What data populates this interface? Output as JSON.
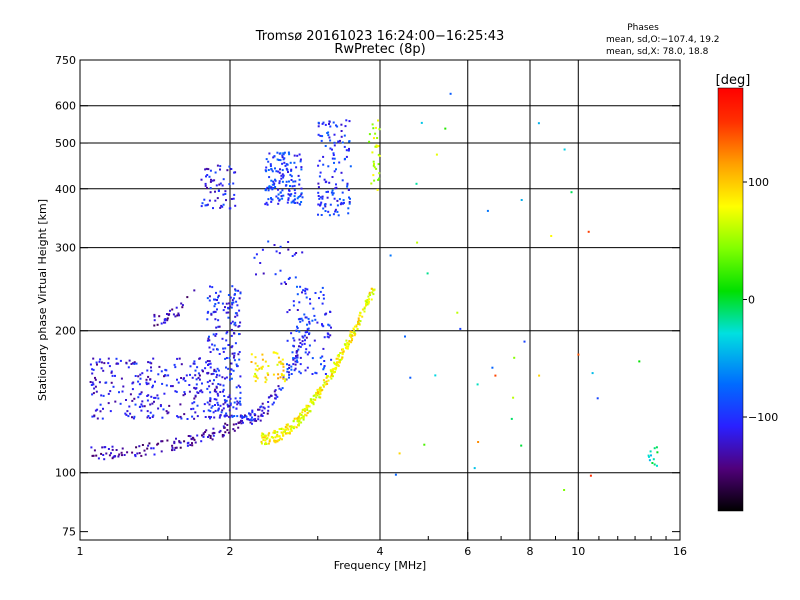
{
  "chart_data": {
    "type": "scatter",
    "title_line1": "Tromsø 20161023 16:24:00−16:25:43",
    "title_line2": "RwPretec (8p)",
    "phases": {
      "heading": "Phases",
      "line1": "mean, sd,O:−107.4, 19.2",
      "line2": "mean, sd,X:  78.0, 18.8"
    },
    "xlabel": "Frequency [MHz]",
    "ylabel": "Stationary phase Virtual Height [km]",
    "xscale": "log",
    "yscale": "log",
    "xlim": [
      1,
      16
    ],
    "ylim": [
      72,
      750
    ],
    "x_ticks": [
      {
        "value": 1,
        "label": "1"
      },
      {
        "value": 2,
        "label": "2"
      },
      {
        "value": 4,
        "label": "4"
      },
      {
        "value": 6,
        "label": "6"
      },
      {
        "value": 8,
        "label": "8"
      },
      {
        "value": 10,
        "label": "10"
      },
      {
        "value": 16,
        "label": "16"
      }
    ],
    "x_minor_ticks": [
      1.5,
      3,
      5,
      7,
      9,
      11,
      12,
      13,
      14,
      15
    ],
    "y_ticks": [
      {
        "value": 75,
        "label": "75"
      },
      {
        "value": 100,
        "label": "100"
      },
      {
        "value": 200,
        "label": "200"
      },
      {
        "value": 300,
        "label": "300"
      },
      {
        "value": 400,
        "label": "400"
      },
      {
        "value": 500,
        "label": "500"
      },
      {
        "value": 600,
        "label": "600"
      },
      {
        "value": 750,
        "label": "750"
      }
    ],
    "grid": true,
    "x_grid": [
      2,
      4,
      6,
      8,
      10
    ],
    "y_grid": [
      100,
      200,
      300,
      400,
      500,
      600
    ],
    "colorbar": {
      "label": "[deg]",
      "range": [
        -180,
        180
      ],
      "ticks": [
        {
          "value": 100,
          "label": "100"
        },
        {
          "value": 0,
          "label": "0"
        },
        {
          "value": -100,
          "label": "−100"
        }
      ]
    },
    "series": [
      {
        "region": "O-mode low trace",
        "x_range": [
          1.05,
          2.4
        ],
        "h_range": [
          110,
          135
        ],
        "shape": "curve",
        "phase_mean": -130,
        "count": 140
      },
      {
        "region": "O-mode scattered F-layer",
        "x_range": [
          1.05,
          1.9
        ],
        "h_range": [
          130,
          175
        ],
        "shape": "cloud",
        "phase_mean": -115,
        "count": 260
      },
      {
        "region": "O-mode spread near 2 MHz",
        "x_range": [
          1.8,
          2.1
        ],
        "h_range": [
          130,
          250
        ],
        "shape": "cloud",
        "phase_mean": -105,
        "count": 220
      },
      {
        "region": "O-mode trace 2.1-2.9 MHz",
        "x_range": [
          2.1,
          2.9
        ],
        "h_range": [
          130,
          205
        ],
        "shape": "curve",
        "phase_mean": -110,
        "count": 80
      },
      {
        "region": "O-mode spread 2.6-3.2 MHz",
        "x_range": [
          2.6,
          3.2
        ],
        "h_range": [
          160,
          250
        ],
        "shape": "cloud",
        "phase_mean": -100,
        "count": 120
      },
      {
        "region": "X-mode trace",
        "x_range": [
          2.3,
          3.9
        ],
        "h_range": [
          118,
          245
        ],
        "shape": "curve",
        "phase_mean": 80,
        "count": 320
      },
      {
        "region": "X-mode yellow cluster",
        "x_range": [
          2.2,
          2.6
        ],
        "h_range": [
          155,
          180
        ],
        "shape": "cloud",
        "phase_mean": 90,
        "count": 50
      },
      {
        "region": "O-mode tilted band 1.4-1.7 MHz",
        "x_range": [
          1.4,
          1.7
        ],
        "h_range": [
          210,
          240
        ],
        "shape": "curve",
        "phase_mean": -130,
        "count": 30
      },
      {
        "region": "O-mode high cluster 1.8-2.0",
        "x_range": [
          1.75,
          2.05
        ],
        "h_range": [
          360,
          450
        ],
        "shape": "cloud",
        "phase_mean": -110,
        "count": 60
      },
      {
        "region": "O-mode high cluster 2.4-2.8",
        "x_range": [
          2.35,
          2.8
        ],
        "h_range": [
          370,
          480
        ],
        "shape": "cloud",
        "phase_mean": -95,
        "count": 150
      },
      {
        "region": "O-mode high cluster 3.0-3.5",
        "x_range": [
          3.0,
          3.5
        ],
        "h_range": [
          350,
          560
        ],
        "shape": "cloud",
        "phase_mean": -100,
        "count": 130
      },
      {
        "region": "High-altitude 3.8-4.0",
        "x_range": [
          3.8,
          4.0
        ],
        "h_range": [
          390,
          560
        ],
        "shape": "cloud",
        "phase_mean": 60,
        "count": 30
      },
      {
        "region": "Mid vertical stripe 2.3-2.8",
        "x_range": [
          2.2,
          2.8
        ],
        "h_range": [
          250,
          310
        ],
        "shape": "cloud",
        "phase_mean": -110,
        "count": 25
      },
      {
        "region": "Sparse high-frequency echoes",
        "x_range": [
          4.2,
          15
        ],
        "h_range": [
          85,
          650
        ],
        "shape": "sparse",
        "phase_mean": 30,
        "count": 40
      },
      {
        "region": "Echo cluster near 14 MHz",
        "x_range": [
          13.8,
          14.5
        ],
        "h_range": [
          103,
          115
        ],
        "shape": "cloud",
        "phase_mean": -20,
        "count": 12
      }
    ]
  }
}
